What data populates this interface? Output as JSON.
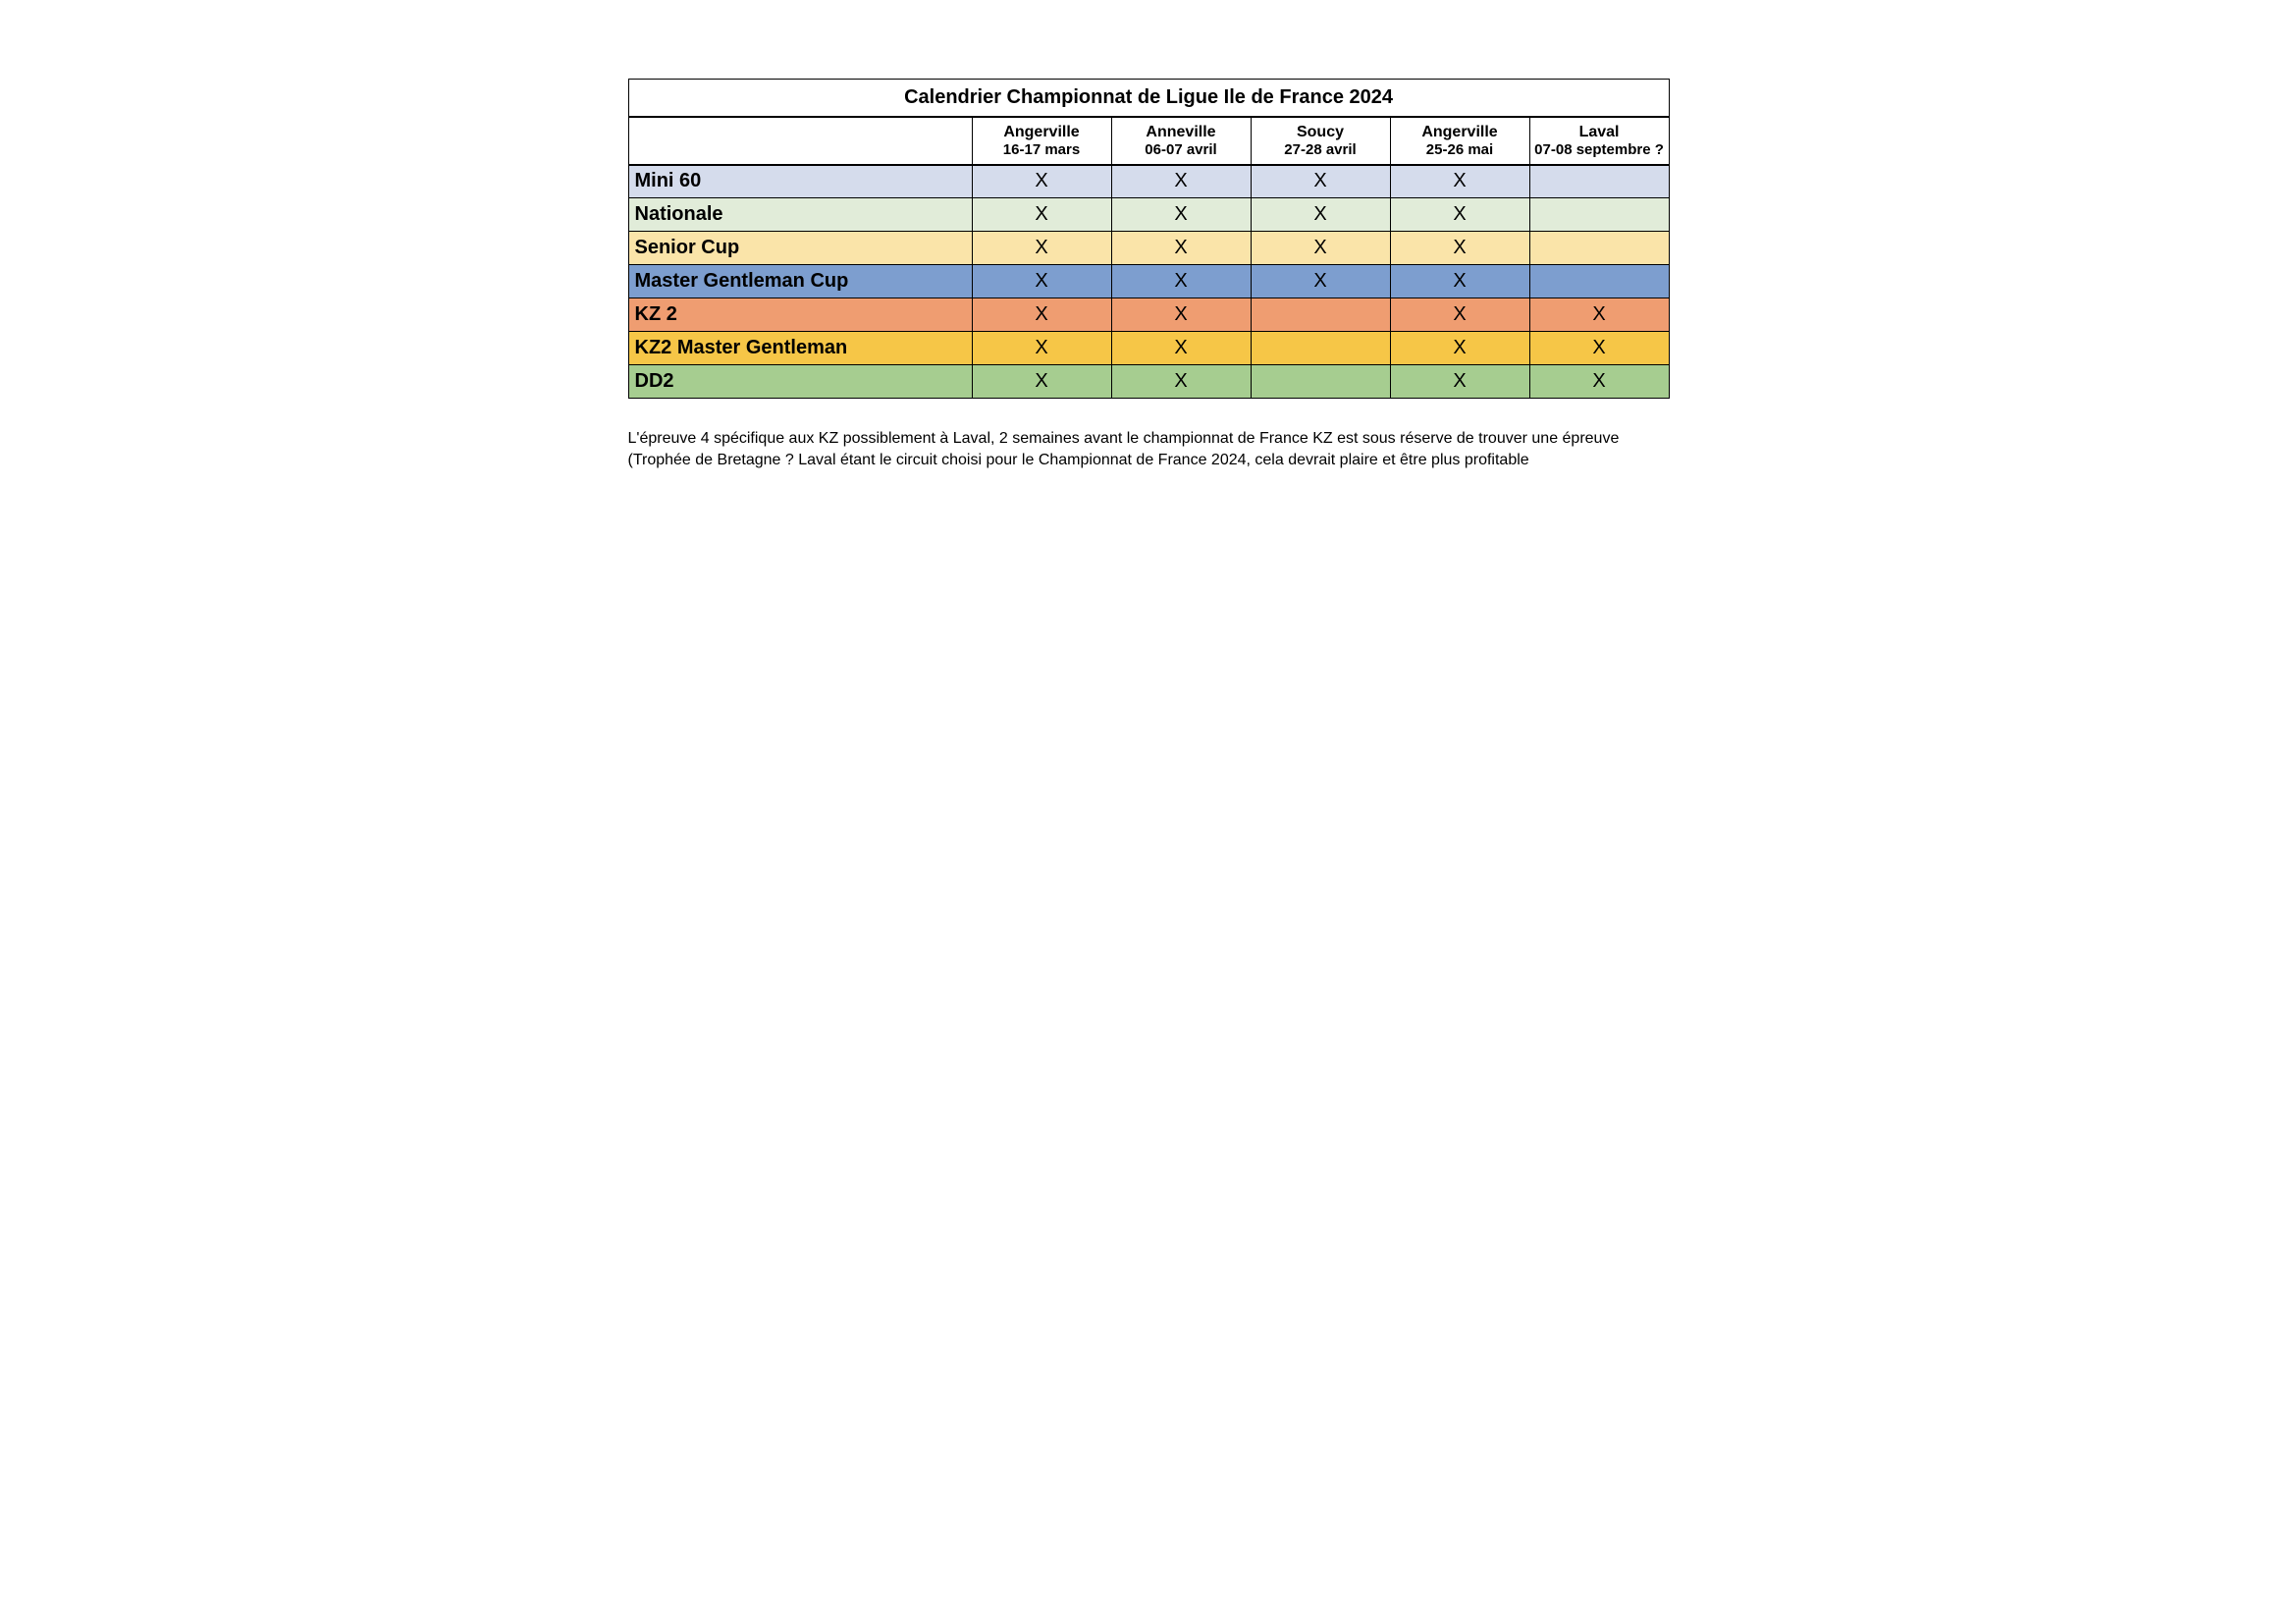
{
  "title": "Calendrier Championnat de Ligue Ile de France 2024",
  "events": [
    {
      "location": "Angerville",
      "date": "16-17 mars"
    },
    {
      "location": "Anneville",
      "date": "06-07 avril"
    },
    {
      "location": "Soucy",
      "date": "27-28 avril"
    },
    {
      "location": "Angerville",
      "date": "25-26 mai"
    },
    {
      "location": "Laval",
      "date": "07-08 septembre ?"
    }
  ],
  "categories": [
    {
      "name": "Mini 60",
      "bg": "#d5dcec",
      "marks": [
        "X",
        "X",
        "X",
        "X",
        ""
      ]
    },
    {
      "name": "Nationale",
      "bg": "#e1ecd9",
      "marks": [
        "X",
        "X",
        "X",
        "X",
        ""
      ]
    },
    {
      "name": "Senior Cup",
      "bg": "#fae4a9",
      "marks": [
        "X",
        "X",
        "X",
        "X",
        ""
      ]
    },
    {
      "name": "Master Gentleman Cup",
      "bg": "#7d9ecf",
      "marks": [
        "X",
        "X",
        "X",
        "X",
        ""
      ]
    },
    {
      "name": "KZ 2",
      "bg": "#ef9d71",
      "marks": [
        "X",
        "X",
        "",
        "X",
        "X"
      ]
    },
    {
      "name": "KZ2 Master Gentleman",
      "bg": "#f6c647",
      "marks": [
        "X",
        "X",
        "",
        "X",
        "X"
      ]
    },
    {
      "name": "DD2",
      "bg": "#a6cd90",
      "marks": [
        "X",
        "X",
        "",
        "X",
        "X"
      ]
    }
  ],
  "note": "L'épreuve 4 spécifique aux KZ possiblement à Laval, 2 semaines avant le championnat de France KZ est sous réserve de trouver une épreuve (Trophée de Bretagne ? Laval étant le circuit choisi pour le Championnat de France 2024, cela devrait plaire et être plus profitable",
  "colors": {
    "page_bg": "#ffffff",
    "text": "#000000",
    "border": "#000000"
  },
  "typography": {
    "title_fontsize": 20,
    "header_fontsize": 16,
    "cat_fontsize": 20,
    "note_fontsize": 16
  }
}
